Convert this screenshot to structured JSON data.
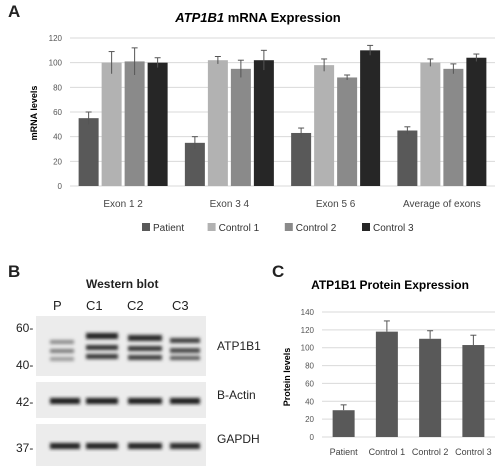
{
  "panel_a": {
    "letter": "A",
    "title_gene": "ATP1B1",
    "title_rest": " mRNA Expression"
  },
  "panel_b": {
    "letter": "B",
    "title": "Western blot",
    "lanes": [
      "P",
      "C1",
      "C2",
      "C3"
    ],
    "markers": [
      "60-",
      "40-",
      "42-",
      "37-"
    ],
    "blot_labels": [
      "ATP1B1",
      "B-Actin",
      "GAPDH"
    ]
  },
  "panel_c": {
    "letter": "C"
  },
  "chart_data": [
    {
      "type": "bar",
      "title": "ATP1B1 mRNA Expression",
      "ylabel": "mRNA levels",
      "xlabel": "",
      "ylim": [
        0,
        120
      ],
      "yticks": [
        0,
        20,
        40,
        60,
        80,
        100,
        120
      ],
      "grid": true,
      "legend": "bottom",
      "categories": [
        "Exon 1  2",
        "Exon 3  4",
        "Exon 5  6",
        "Average of exons"
      ],
      "series": [
        {
          "name": "Patient",
          "color": "#595959",
          "values": [
            55,
            35,
            43,
            45
          ],
          "errors": [
            5,
            5,
            4,
            3
          ]
        },
        {
          "name": "Control 1",
          "color": "#b2b2b2",
          "values": [
            100,
            102,
            98,
            100
          ],
          "errors": [
            9,
            3,
            5,
            3
          ]
        },
        {
          "name": "Control 2",
          "color": "#8a8a8a",
          "values": [
            101,
            95,
            88,
            95
          ],
          "errors": [
            11,
            7,
            2,
            4
          ]
        },
        {
          "name": "Control 3",
          "color": "#262626",
          "values": [
            100,
            102,
            110,
            104
          ],
          "errors": [
            4,
            8,
            4,
            3
          ]
        }
      ]
    },
    {
      "type": "bar",
      "title": "ATP1B1 Protein Expression",
      "ylabel": "Protein levels",
      "xlabel": "",
      "ylim": [
        0,
        140
      ],
      "yticks": [
        0,
        20,
        40,
        60,
        80,
        100,
        120,
        140
      ],
      "grid": true,
      "categories": [
        "Patient",
        "Control 1",
        "Control 2",
        "Control 3"
      ],
      "values": [
        30,
        118,
        110,
        103
      ],
      "errors": [
        6,
        12,
        9,
        11
      ],
      "color": "#595959"
    }
  ]
}
